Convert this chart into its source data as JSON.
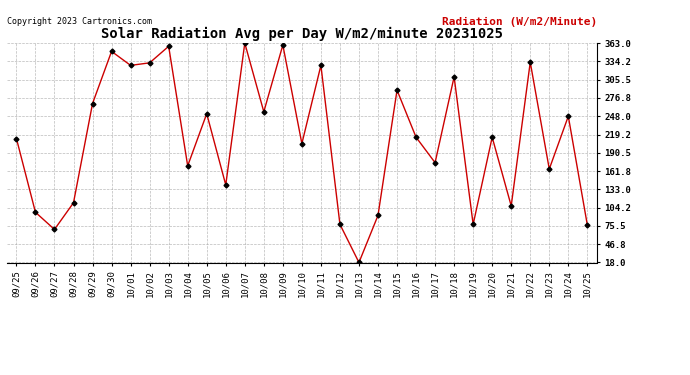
{
  "title": "Solar Radiation Avg per Day W/m2/minute 20231025",
  "copyright_text": "Copyright 2023 Cartronics.com",
  "legend_label": "Radiation (W/m2/Minute)",
  "labels": [
    "09/25",
    "09/26",
    "09/27",
    "09/28",
    "09/29",
    "09/30",
    "10/01",
    "10/02",
    "10/03",
    "10/04",
    "10/05",
    "10/06",
    "10/07",
    "10/08",
    "10/09",
    "10/10",
    "10/11",
    "10/12",
    "10/13",
    "10/14",
    "10/15",
    "10/16",
    "10/17",
    "10/18",
    "10/19",
    "10/20",
    "10/21",
    "10/22",
    "10/23",
    "10/24",
    "10/25"
  ],
  "values": [
    213.0,
    97.0,
    70.0,
    112.0,
    268.0,
    350.0,
    328.0,
    332.0,
    358.0,
    170.0,
    252.0,
    140.0,
    363.0,
    255.0,
    360.0,
    205.0,
    328.0,
    78.0,
    18.0,
    92.0,
    289.0,
    215.0,
    175.0,
    310.0,
    78.0,
    215.0,
    107.0,
    333.0,
    165.0,
    248.0,
    77.0
  ],
  "line_color": "#cc0000",
  "marker_color": "#000000",
  "bg_color": "#ffffff",
  "grid_color": "#aaaaaa",
  "ylim_min": 18.0,
  "ylim_max": 363.0,
  "yticks": [
    18.0,
    46.8,
    75.5,
    104.2,
    133.0,
    161.8,
    190.5,
    219.2,
    248.0,
    276.8,
    305.5,
    334.2,
    363.0
  ],
  "title_fontsize": 10,
  "copyright_fontsize": 6,
  "legend_fontsize": 8,
  "tick_fontsize": 6.5
}
